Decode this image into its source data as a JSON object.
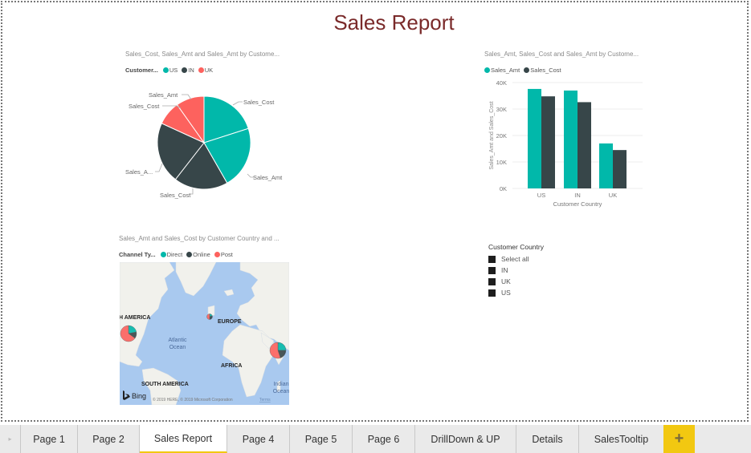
{
  "report": {
    "title": "Sales Report"
  },
  "pie_visual": {
    "title": "Sales_Cost, Sales_Amt and Sales_Amt by Custome...",
    "legend_title": "Customer...",
    "legend": [
      {
        "label": "US",
        "color": "#01b8aa"
      },
      {
        "label": "IN",
        "color": "#374649"
      },
      {
        "label": "UK",
        "color": "#fd625e"
      }
    ],
    "slice_labels": [
      "Sales_Cost",
      "Sales_Amt",
      "Sales_Cost",
      "Sales_A...",
      "Sales_Cost",
      "Sales_Amt"
    ]
  },
  "bar_visual": {
    "title": "Sales_Amt, Sales_Cost and Sales_Amt by Custome...",
    "legend": [
      {
        "label": "Sales_Amt",
        "color": "#01b8aa"
      },
      {
        "label": "Sales_Cost",
        "color": "#374649"
      }
    ],
    "y_ticks": [
      "40K",
      "30K",
      "20K",
      "10K",
      "0K"
    ],
    "y_label": "Sales_Amt and Sales_Cost",
    "x_label": "Customer Country",
    "categories": [
      "US",
      "IN",
      "UK"
    ]
  },
  "map_visual": {
    "title": "Sales_Amt and Sales_Cost by Customer Country and ...",
    "legend_title": "Channel Ty...",
    "legend": [
      {
        "label": "Direct",
        "color": "#01b8aa"
      },
      {
        "label": "Online",
        "color": "#374649"
      },
      {
        "label": "Post",
        "color": "#fd625e"
      }
    ],
    "labels": {
      "north_america": "H AMERICA",
      "europe": "EUROPE",
      "atlantic_1": "Atlantic",
      "atlantic_2": "Ocean",
      "africa": "AFRICA",
      "south_america": "SOUTH AMERICA",
      "indian_1": "Indian",
      "indian_2": "Ocean"
    },
    "bing_label": "Bing",
    "copyright": "© 2019 HERE, © 2019 Microsoft Corporation",
    "terms": "Terms"
  },
  "slicer": {
    "title": "Customer Country",
    "items": [
      "Select all",
      "IN",
      "UK",
      "US"
    ]
  },
  "tabs": {
    "items": [
      "Page 1",
      "Page 2",
      "Sales Report",
      "Page 4",
      "Page 5",
      "Page 6",
      "DrillDown & UP",
      "Details",
      "SalesTooltip"
    ],
    "active": "Sales Report",
    "add_label": "+"
  },
  "chart_data": [
    {
      "type": "pie",
      "title": "Sales_Cost, Sales_Amt and Sales_Amt by Customer Country",
      "legend_title": "Customer Country",
      "slices": [
        {
          "country": "US",
          "measure": "Sales_Cost",
          "value": 34800,
          "color": "#01b8aa"
        },
        {
          "country": "US",
          "measure": "Sales_Amt",
          "value": 37600,
          "color": "#01b8aa"
        },
        {
          "country": "IN",
          "measure": "Sales_Cost",
          "value": 32600,
          "color": "#374649"
        },
        {
          "country": "IN",
          "measure": "Sales_Amt",
          "value": 37000,
          "color": "#374649"
        },
        {
          "country": "UK",
          "measure": "Sales_Cost",
          "value": 14500,
          "color": "#fd625e"
        },
        {
          "country": "UK",
          "measure": "Sales_Amt",
          "value": 17000,
          "color": "#fd625e"
        }
      ]
    },
    {
      "type": "bar",
      "title": "Sales_Amt, Sales_Cost and Sales_Amt by Customer Country",
      "categories": [
        "US",
        "IN",
        "UK"
      ],
      "series": [
        {
          "name": "Sales_Amt",
          "values": [
            37600,
            37000,
            17000
          ],
          "color": "#01b8aa"
        },
        {
          "name": "Sales_Cost",
          "values": [
            34800,
            32600,
            14500
          ],
          "color": "#374649"
        }
      ],
      "xlabel": "Customer Country",
      "ylabel": "Sales_Amt and Sales_Cost",
      "ylim": [
        0,
        40000
      ],
      "y_ticks": [
        0,
        10000,
        20000,
        30000,
        40000
      ],
      "grid": true,
      "legend_position": "top-left"
    }
  ]
}
